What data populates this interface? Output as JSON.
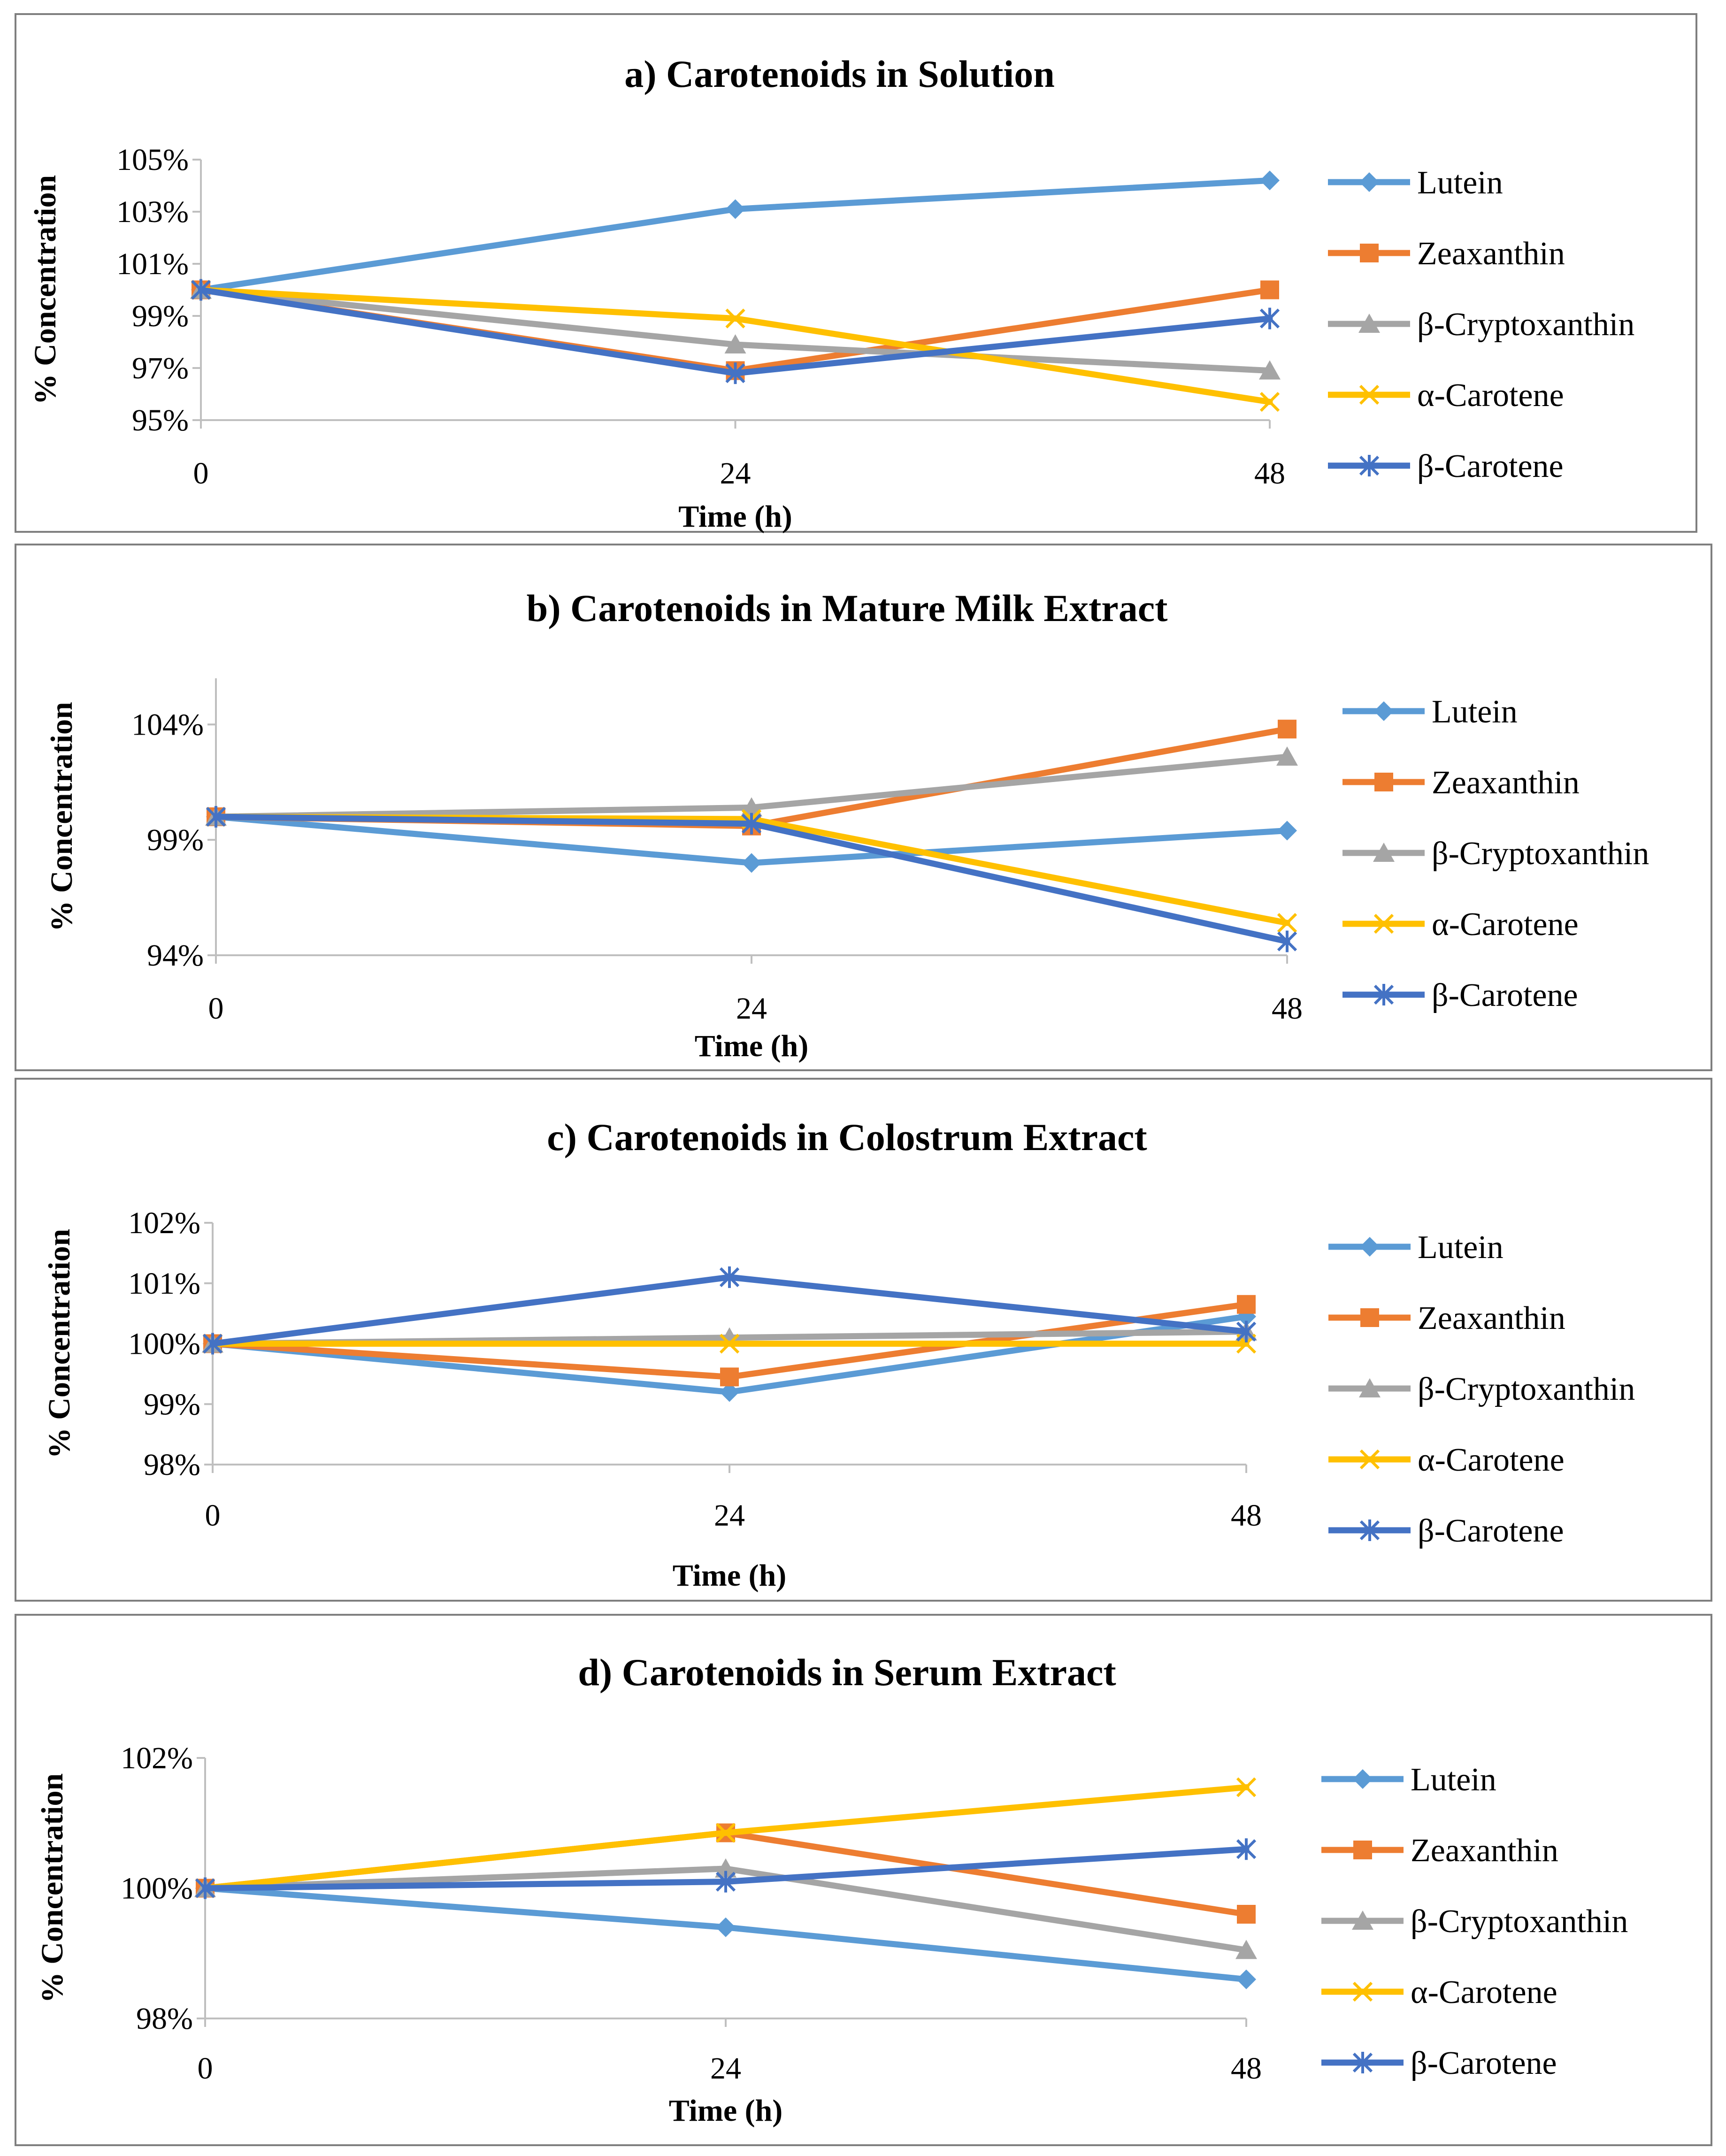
{
  "series_style": [
    {
      "name": "Lutein",
      "color": "#5B9BD5",
      "marker": "diamond"
    },
    {
      "name": "Zeaxanthin",
      "color": "#ED7D31",
      "marker": "square"
    },
    {
      "name": "β-Cryptoxanthin",
      "color": "#A5A5A5",
      "marker": "triangle"
    },
    {
      "name": "α-Carotene",
      "color": "#FFC000",
      "marker": "x"
    },
    {
      "name": "β-Carotene",
      "color": "#4472C4",
      "marker": "star"
    }
  ],
  "chart_data": [
    {
      "type": "line",
      "title": "a) Carotenoids in Solution",
      "xlabel": "Time (h)",
      "ylabel": "% Concentration",
      "x": [
        0,
        24,
        48
      ],
      "xticks": [
        "0",
        "24",
        "48"
      ],
      "ylim": [
        95,
        105
      ],
      "yticks": [
        95,
        97,
        99,
        101,
        103,
        105
      ],
      "ytick_labels": [
        "95%",
        "97%",
        "99%",
        "101%",
        "103%",
        "105%"
      ],
      "series": [
        {
          "name": "Lutein",
          "values": [
            100,
            103.1,
            104.2
          ]
        },
        {
          "name": "Zeaxanthin",
          "values": [
            100,
            96.9,
            100
          ]
        },
        {
          "name": "β-Cryptoxanthin",
          "values": [
            100,
            97.9,
            96.9
          ]
        },
        {
          "name": "α-Carotene",
          "values": [
            100,
            98.9,
            95.7
          ]
        },
        {
          "name": "β-Carotene",
          "values": [
            100,
            96.8,
            98.9
          ]
        }
      ]
    },
    {
      "type": "line",
      "title": "b) Carotenoids in Mature Milk Extract",
      "xlabel": "Time (h)",
      "ylabel": "% Concentration",
      "x": [
        0,
        24,
        48
      ],
      "xticks": [
        "0",
        "24",
        "48"
      ],
      "ylim": [
        94,
        106
      ],
      "yticks": [
        94,
        99,
        104
      ],
      "ytick_labels": [
        "94%",
        "99%",
        "104%"
      ],
      "series": [
        {
          "name": "Lutein",
          "values": [
            100,
            98,
            99.4
          ]
        },
        {
          "name": "Zeaxanthin",
          "values": [
            100,
            99.6,
            103.8
          ]
        },
        {
          "name": "β-Cryptoxanthin",
          "values": [
            100,
            100.4,
            102.6
          ]
        },
        {
          "name": "α-Carotene",
          "values": [
            100,
            99.9,
            95.4
          ]
        },
        {
          "name": "β-Carotene",
          "values": [
            100,
            99.7,
            94.6
          ]
        }
      ]
    },
    {
      "type": "line",
      "title": "c) Carotenoids in Colostrum Extract",
      "xlabel": "Time (h)",
      "ylabel": "% Concentration",
      "x": [
        0,
        24,
        48
      ],
      "xticks": [
        "0",
        "24",
        "48"
      ],
      "ylim": [
        98,
        102
      ],
      "yticks": [
        98,
        99,
        100,
        101,
        102
      ],
      "ytick_labels": [
        "98%",
        "99%",
        "100%",
        "101%",
        "102%"
      ],
      "series": [
        {
          "name": "Lutein",
          "values": [
            100,
            99.2,
            100.45
          ]
        },
        {
          "name": "Zeaxanthin",
          "values": [
            100,
            99.45,
            100.65
          ]
        },
        {
          "name": "β-Cryptoxanthin",
          "values": [
            100,
            100.1,
            100.2
          ]
        },
        {
          "name": "α-Carotene",
          "values": [
            100,
            100,
            100
          ]
        },
        {
          "name": "β-Carotene",
          "values": [
            100,
            101.1,
            100.2
          ]
        }
      ]
    },
    {
      "type": "line",
      "title": "d) Carotenoids in Serum Extract",
      "xlabel": "Time (h)",
      "ylabel": "% Concentration",
      "x": [
        0,
        24,
        48
      ],
      "xticks": [
        "0",
        "24",
        "48"
      ],
      "ylim": [
        98,
        102
      ],
      "yticks": [
        98,
        100,
        102
      ],
      "ytick_labels": [
        "98%",
        "100%",
        "102%"
      ],
      "series": [
        {
          "name": "Lutein",
          "values": [
            100,
            99.4,
            98.6
          ]
        },
        {
          "name": "Zeaxanthin",
          "values": [
            100,
            100.85,
            99.6
          ]
        },
        {
          "name": "β-Cryptoxanthin",
          "values": [
            100,
            100.3,
            99.05
          ]
        },
        {
          "name": "α-Carotene",
          "values": [
            100,
            100.85,
            101.55
          ]
        },
        {
          "name": "β-Carotene",
          "values": [
            100,
            100.1,
            100.6
          ]
        }
      ]
    }
  ]
}
